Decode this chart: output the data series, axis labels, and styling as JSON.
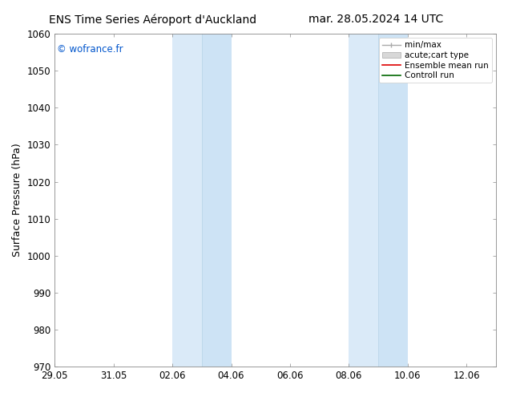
{
  "title_left": "ENS Time Series Aéroport d'Auckland",
  "title_right": "mar. 28.05.2024 14 UTC",
  "ylabel": "Surface Pressure (hPa)",
  "ylim": [
    970,
    1060
  ],
  "yticks": [
    970,
    980,
    990,
    1000,
    1010,
    1020,
    1030,
    1040,
    1050,
    1060
  ],
  "xlim": [
    0,
    15
  ],
  "xtick_labels": [
    "29.05",
    "31.05",
    "02.06",
    "04.06",
    "06.06",
    "08.06",
    "10.06",
    "12.06"
  ],
  "xtick_positions": [
    0,
    2,
    4,
    6,
    8,
    10,
    12,
    14
  ],
  "watermark": "© wofrance.fr",
  "watermark_color": "#0055cc",
  "shaded_regions": [
    {
      "xstart": 4.0,
      "xend": 5.0,
      "color": "#daeaf8"
    },
    {
      "xstart": 5.0,
      "xend": 6.0,
      "color": "#cde3f5"
    },
    {
      "xstart": 10.0,
      "xend": 11.0,
      "color": "#daeaf8"
    },
    {
      "xstart": 11.0,
      "xend": 12.0,
      "color": "#cde3f5"
    }
  ],
  "shaded_divider_color": "#b8d4e8",
  "bg_color": "#ffffff",
  "grid_color": "#dddddd",
  "title_fontsize": 10,
  "tick_fontsize": 8.5,
  "label_fontsize": 9,
  "legend_fontsize": 7.5
}
